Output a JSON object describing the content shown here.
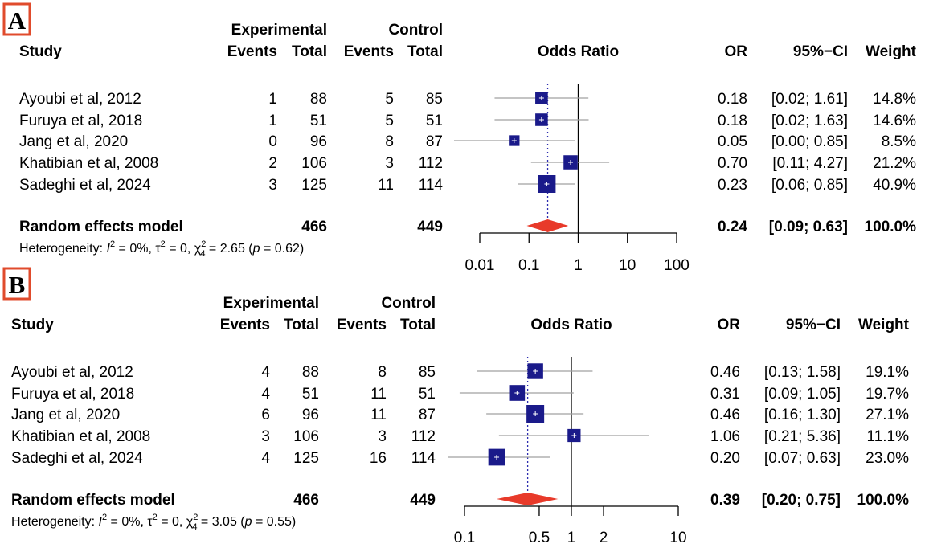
{
  "chart_data": [
    {
      "type": "forest",
      "panel": "A",
      "headers": {
        "study": "Study",
        "experimental": "Experimental",
        "control": "Control",
        "events": "Events",
        "total": "Total",
        "odds_ratio": "Odds Ratio",
        "or": "OR",
        "ci": "95%−CI",
        "weight": "Weight"
      },
      "studies": [
        {
          "name": "Ayoubi et al, 2012",
          "exp_events": "1",
          "exp_total": "88",
          "ctrl_events": "5",
          "ctrl_total": "85",
          "or": 0.18,
          "lo": 0.02,
          "hi": 1.61,
          "or_text": "0.18",
          "ci_text": "[0.02; 1.61]",
          "weight_text": "14.8%",
          "weight": 14.8
        },
        {
          "name": "Furuya et al, 2018",
          "exp_events": "1",
          "exp_total": "51",
          "ctrl_events": "5",
          "ctrl_total": "51",
          "or": 0.18,
          "lo": 0.02,
          "hi": 1.63,
          "or_text": "0.18",
          "ci_text": "[0.02; 1.63]",
          "weight_text": "14.6%",
          "weight": 14.6
        },
        {
          "name": "Jang et al, 2020",
          "exp_events": "0",
          "exp_total": "96",
          "ctrl_events": "8",
          "ctrl_total": "87",
          "or": 0.05,
          "lo": 0.003,
          "hi": 0.85,
          "or_text": "0.05",
          "ci_text": "[0.00; 0.85]",
          "weight_text": "8.5%",
          "weight": 8.5
        },
        {
          "name": "Khatibian et al, 2008",
          "exp_events": "2",
          "exp_total": "106",
          "ctrl_events": "3",
          "ctrl_total": "112",
          "or": 0.7,
          "lo": 0.11,
          "hi": 4.27,
          "or_text": "0.70",
          "ci_text": "[0.11; 4.27]",
          "weight_text": "21.2%",
          "weight": 21.2
        },
        {
          "name": "Sadeghi et al, 2024",
          "exp_events": "3",
          "exp_total": "125",
          "ctrl_events": "11",
          "ctrl_total": "114",
          "or": 0.23,
          "lo": 0.06,
          "hi": 0.85,
          "or_text": "0.23",
          "ci_text": "[0.06; 0.85]",
          "weight_text": "40.9%",
          "weight": 40.9
        }
      ],
      "pooled": {
        "label": "Random effects model",
        "exp_total": "466",
        "ctrl_total": "449",
        "or": 0.24,
        "lo": 0.09,
        "hi": 0.63,
        "or_text": "0.24",
        "ci_text": "[0.09; 0.63]",
        "weight_text": "100.0%"
      },
      "heterogeneity": {
        "prefix": "Heterogeneity: ",
        "i2": "I",
        "i2_value": " = 0%, τ",
        "tau2_value": " = 0, χ",
        "chi_sub": "4",
        "chi_value": " = 2.65 (",
        "p_label": "p",
        "p_value": " = 0.62)"
      },
      "x_axis": {
        "scale": "log",
        "ticks": [
          0.01,
          0.1,
          1,
          10,
          100
        ],
        "tick_labels": [
          "0.01",
          "0.1",
          "1",
          "10",
          "100"
        ],
        "xlim": [
          0.01,
          100
        ]
      },
      "colors": {
        "box": "#1a1a8a",
        "ci_line": "#a0a0a0",
        "diamond": "#e83a2a",
        "pooled_line": "#2d2db0",
        "label_border": "#e04b2c"
      }
    },
    {
      "type": "forest",
      "panel": "B",
      "headers": {
        "study": "Study",
        "experimental": "Experimental",
        "control": "Control",
        "events": "Events",
        "total": "Total",
        "odds_ratio": "Odds Ratio",
        "or": "OR",
        "ci": "95%−CI",
        "weight": "Weight"
      },
      "studies": [
        {
          "name": "Ayoubi et al, 2012",
          "exp_events": "4",
          "exp_total": "88",
          "ctrl_events": "8",
          "ctrl_total": "85",
          "or": 0.46,
          "lo": 0.13,
          "hi": 1.58,
          "or_text": "0.46",
          "ci_text": "[0.13; 1.58]",
          "weight_text": "19.1%",
          "weight": 19.1
        },
        {
          "name": "Furuya et al, 2018",
          "exp_events": "4",
          "exp_total": "51",
          "ctrl_events": "11",
          "ctrl_total": "51",
          "or": 0.31,
          "lo": 0.09,
          "hi": 1.05,
          "or_text": "0.31",
          "ci_text": "[0.09; 1.05]",
          "weight_text": "19.7%",
          "weight": 19.7
        },
        {
          "name": "Jang et al, 2020",
          "exp_events": "6",
          "exp_total": "96",
          "ctrl_events": "11",
          "ctrl_total": "87",
          "or": 0.46,
          "lo": 0.16,
          "hi": 1.3,
          "or_text": "0.46",
          "ci_text": "[0.16; 1.30]",
          "weight_text": "27.1%",
          "weight": 27.1
        },
        {
          "name": "Khatibian et al, 2008",
          "exp_events": "3",
          "exp_total": "106",
          "ctrl_events": "3",
          "ctrl_total": "112",
          "or": 1.06,
          "lo": 0.21,
          "hi": 5.36,
          "or_text": "1.06",
          "ci_text": "[0.21; 5.36]",
          "weight_text": "11.1%",
          "weight": 11.1
        },
        {
          "name": "Sadeghi et al, 2024",
          "exp_events": "4",
          "exp_total": "125",
          "ctrl_events": "16",
          "ctrl_total": "114",
          "or": 0.2,
          "lo": 0.07,
          "hi": 0.63,
          "or_text": "0.20",
          "ci_text": "[0.07; 0.63]",
          "weight_text": "23.0%",
          "weight": 23.0
        }
      ],
      "pooled": {
        "label": "Random effects model",
        "exp_total": "466",
        "ctrl_total": "449",
        "or": 0.39,
        "lo": 0.2,
        "hi": 0.75,
        "or_text": "0.39",
        "ci_text": "[0.20; 0.75]",
        "weight_text": "100.0%"
      },
      "heterogeneity": {
        "prefix": "Heterogeneity: ",
        "i2": "I",
        "i2_value": " = 0%, τ",
        "tau2_value": " = 0, χ",
        "chi_sub": "4",
        "chi_value": " = 3.05 (",
        "p_label": "p",
        "p_value": " = 0.55)"
      },
      "x_axis": {
        "scale": "log",
        "ticks": [
          0.1,
          0.5,
          1,
          2,
          10
        ],
        "tick_labels": [
          "0.1",
          "0.5",
          "1",
          "2",
          "10"
        ],
        "xlim": [
          0.1,
          10
        ]
      },
      "colors": {
        "box": "#1a1a8a",
        "ci_line": "#a0a0a0",
        "diamond": "#e83a2a",
        "pooled_line": "#2d2db0",
        "label_border": "#e04b2c"
      }
    }
  ]
}
